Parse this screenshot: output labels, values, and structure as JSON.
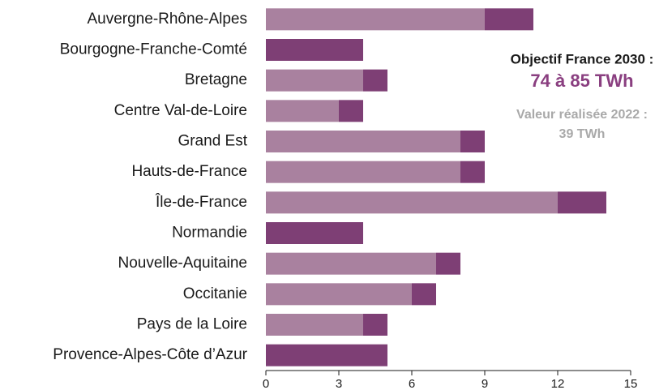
{
  "chart_data": {
    "type": "bar",
    "orientation": "horizontal",
    "stacked": true,
    "categories": [
      "Auvergne-Rhône-Alpes",
      "Bourgogne-Franche-Comté",
      "Bretagne",
      "Centre Val-de-Loire",
      "Grand Est",
      "Hauts-de-France",
      "Île-de-France",
      "Normandie",
      "Nouvelle-Aquitaine",
      "Occitanie",
      "Pays de la Loire",
      "Provence-Alpes-Côte d’Azur"
    ],
    "series": [
      {
        "color": "#a9819f",
        "values": [
          9,
          0,
          4,
          3,
          8,
          8,
          12,
          0,
          7,
          6,
          4,
          0
        ]
      },
      {
        "color": "#7e3f75",
        "values": [
          2,
          4,
          1,
          1,
          1,
          1,
          2,
          4,
          1,
          1,
          1,
          5
        ]
      }
    ],
    "xlim": [
      0,
      15
    ],
    "xticks": [
      0,
      3,
      6,
      9,
      12,
      15
    ],
    "annotations": [
      "Objectif France 2030 :",
      "74 à 85 TWh",
      "Valeur réalisée 2022 :",
      "39 TWh"
    ]
  }
}
